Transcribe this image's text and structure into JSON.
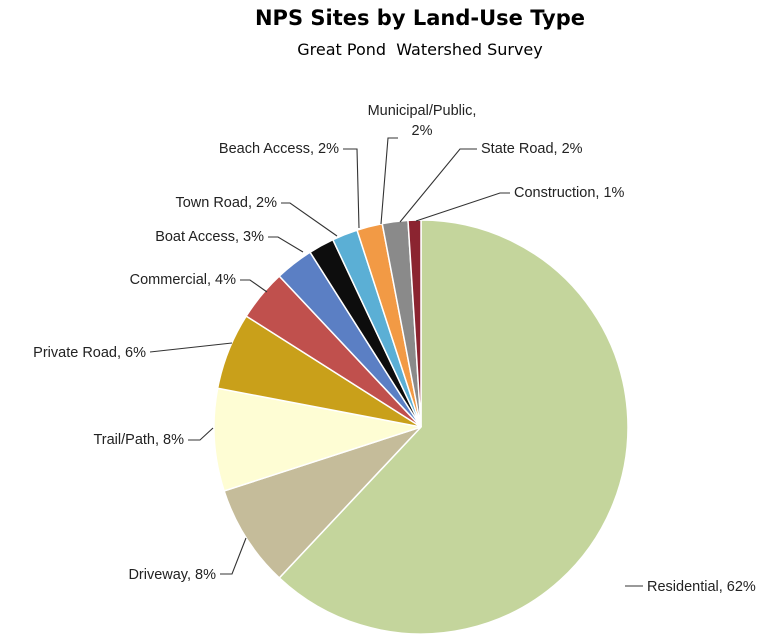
{
  "chart_data": {
    "type": "pie",
    "title": "NPS Sites by Land-Use Type",
    "subtitle": "Great Pond  Watershed Survey",
    "slices": [
      {
        "name": "Residential",
        "value": 62,
        "label": "Residential, 62%",
        "color": "#c4d59c"
      },
      {
        "name": "Driveway",
        "value": 8,
        "label": "Driveway, 8%",
        "color": "#c5bc9a"
      },
      {
        "name": "Trail/Path",
        "value": 8,
        "label": "Trail/Path, 8%",
        "color": "#fefdd4"
      },
      {
        "name": "Private Road",
        "value": 6,
        "label": "Private Road, 6%",
        "color": "#c9a01a"
      },
      {
        "name": "Commercial",
        "value": 4,
        "label": "Commercial, 4%",
        "color": "#c0504d"
      },
      {
        "name": "Boat Access",
        "value": 3,
        "label": "Boat Access, 3%",
        "color": "#5b7fc4"
      },
      {
        "name": "Town Road",
        "value": 2,
        "label": "Town Road, 2%",
        "color": "#0d0d0d"
      },
      {
        "name": "Beach Access",
        "value": 2,
        "label": "Beach Access, 2%",
        "color": "#5bafd5"
      },
      {
        "name": "Municipal/Public",
        "value": 2,
        "label": [
          "Municipal/Public,",
          "2%"
        ],
        "color": "#f29a45"
      },
      {
        "name": "State Road",
        "value": 2,
        "label": "State Road, 2%",
        "color": "#8a8a8a"
      },
      {
        "name": "Construction",
        "value": 1,
        "label": "Construction, 1%",
        "color": "#8b2430"
      }
    ]
  }
}
